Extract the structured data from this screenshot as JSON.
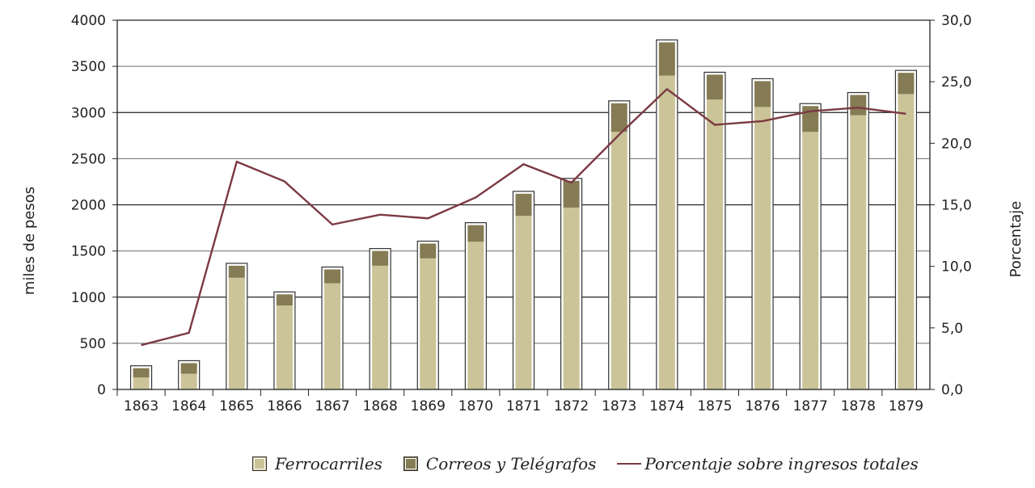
{
  "chart_data": {
    "type": "bar",
    "stacked": true,
    "categories": [
      "1863",
      "1864",
      "1865",
      "1866",
      "1867",
      "1868",
      "1869",
      "1870",
      "1871",
      "1872",
      "1873",
      "1874",
      "1875",
      "1876",
      "1877",
      "1878",
      "1879"
    ],
    "series": [
      {
        "name": "Ferrocarriles",
        "axis": "left",
        "type": "bar",
        "color": "#cbc498",
        "values": [
          130,
          170,
          1210,
          910,
          1150,
          1340,
          1420,
          1600,
          1880,
          1970,
          2790,
          3400,
          3140,
          3060,
          2790,
          2970,
          3200
        ]
      },
      {
        "name": "Correos y Telégrafos",
        "axis": "left",
        "type": "bar",
        "color": "#857b54",
        "values": [
          100,
          115,
          130,
          120,
          150,
          160,
          160,
          180,
          240,
          290,
          310,
          360,
          270,
          280,
          280,
          220,
          230
        ]
      },
      {
        "name": "Porcentaje sobre ingresos totales",
        "axis": "right",
        "type": "line",
        "color": "#7b3a43",
        "values": [
          3.6,
          4.6,
          18.5,
          16.9,
          13.4,
          14.2,
          13.9,
          15.6,
          18.3,
          16.8,
          20.7,
          24.4,
          21.5,
          21.8,
          22.6,
          22.9,
          22.4
        ]
      }
    ],
    "ylabel": "miles de pesos",
    "ylim": [
      0,
      4000
    ],
    "yticks": [
      "0",
      "500",
      "1000",
      "1500",
      "2000",
      "2500",
      "3000",
      "3500",
      "4000"
    ],
    "y2label": "Porcentaje",
    "y2lim": [
      0,
      30
    ],
    "y2ticks": [
      "0,0",
      "5,0",
      "10,0",
      "15,0",
      "20,0",
      "25,0",
      "30,0"
    ],
    "grid": true,
    "legend_position": "bottom"
  }
}
